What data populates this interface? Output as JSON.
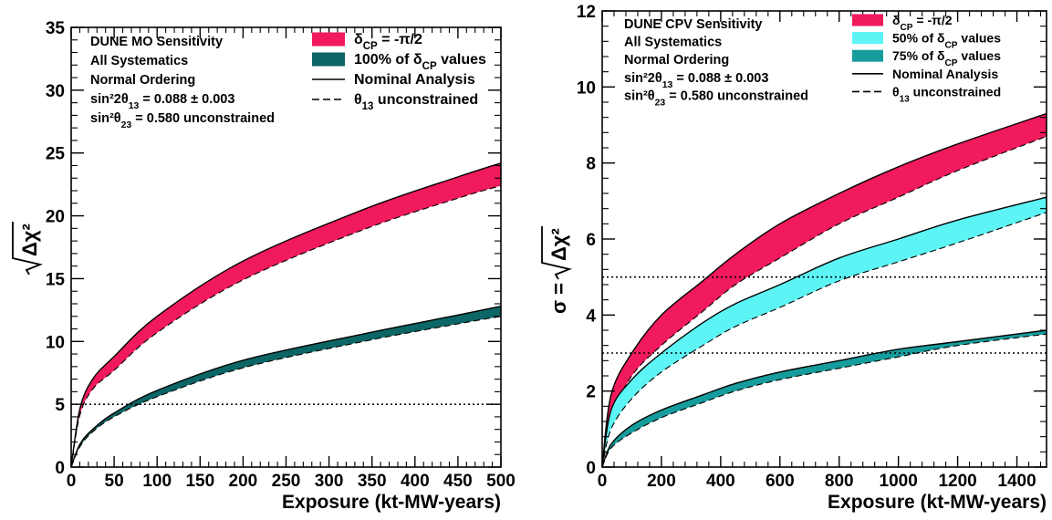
{
  "chart_data": [
    {
      "type": "area",
      "xlabel": "Exposure (kt-MW-years)",
      "ylabel_radicand": "Δχ²",
      "xlim": [
        0,
        500
      ],
      "ylim": [
        0,
        35
      ],
      "x_ticks": [
        0,
        50,
        100,
        150,
        200,
        250,
        300,
        350,
        400,
        450,
        500
      ],
      "y_ticks": [
        0,
        5,
        10,
        15,
        20,
        25,
        30,
        35
      ],
      "info_lines": [
        {
          "main": "DUNE MO Sensitivity",
          "sub": "",
          "tail": ""
        },
        {
          "main": "All Systematics",
          "sub": "",
          "tail": ""
        },
        {
          "main": "Normal Ordering",
          "sub": "",
          "tail": ""
        },
        {
          "main": "sin²2θ",
          "sub": "13",
          "tail": " = 0.088 ± 0.003"
        },
        {
          "main": "sin²θ",
          "sub": "23",
          "tail": " = 0.580 unconstrained"
        }
      ],
      "legend": [
        {
          "kind": "fill",
          "color": "#f01a5c",
          "pre": "δ",
          "sub": "CP",
          "post": " = -π/2"
        },
        {
          "kind": "fill",
          "color": "#0d6666",
          "pre": "100% of δ",
          "sub": "CP",
          "post": " values"
        },
        {
          "kind": "solid",
          "pre": "Nominal Analysis",
          "sub": "",
          "post": ""
        },
        {
          "kind": "dashed",
          "pre": "θ",
          "sub": "13",
          "post": " unconstrained"
        }
      ],
      "hlines": [
        5
      ],
      "series": [
        {
          "name": "δCP = -π/2",
          "color": "#f01a5c",
          "x": [
            0,
            10,
            25,
            50,
            100,
            200,
            340,
            450,
            500
          ],
          "upper": [
            0,
            4.6,
            7.0,
            8.8,
            12.0,
            16.4,
            20.5,
            23.1,
            24.2
          ],
          "lower": [
            0,
            4.1,
            6.2,
            7.7,
            10.7,
            14.9,
            18.9,
            21.4,
            22.4
          ]
        },
        {
          "name": "100% of δCP values",
          "color": "#0d6666",
          "x": [
            0,
            10,
            25,
            50,
            100,
            200,
            340,
            450,
            500
          ],
          "upper": [
            0,
            1.8,
            3.0,
            4.3,
            6.1,
            8.5,
            10.6,
            12.1,
            12.8
          ],
          "lower": [
            0,
            1.6,
            2.8,
            4.0,
            5.6,
            7.9,
            10.0,
            11.4,
            12.0
          ]
        }
      ]
    },
    {
      "type": "area",
      "ylabel_prefix": "σ = ",
      "ylabel_radicand": "Δχ²",
      "xlabel": "Exposure (kt-MW-years)",
      "xlim": [
        0,
        1500
      ],
      "ylim": [
        0,
        12
      ],
      "x_ticks": [
        0,
        200,
        400,
        600,
        800,
        1000,
        1200,
        1400
      ],
      "y_ticks": [
        0,
        2,
        4,
        6,
        8,
        10,
        12
      ],
      "info_lines": [
        {
          "main": "DUNE CPV Sensitivity",
          "sub": "",
          "tail": ""
        },
        {
          "main": "All Systematics",
          "sub": "",
          "tail": ""
        },
        {
          "main": "Normal Ordering",
          "sub": "",
          "tail": ""
        },
        {
          "main": "sin²2θ",
          "sub": "13",
          "tail": " = 0.088 ± 0.003"
        },
        {
          "main": "sin²θ",
          "sub": "23",
          "tail": " = 0.580 unconstrained"
        }
      ],
      "legend": [
        {
          "kind": "fill",
          "color": "#f01a5c",
          "pre": "δ",
          "sub": "CP",
          "post": " = -π/2"
        },
        {
          "kind": "fill",
          "color": "#5cf4f4",
          "pre": "50% of δ",
          "sub": "CP",
          "post": " values"
        },
        {
          "kind": "fill",
          "color": "#169c9c",
          "pre": "75% of δ",
          "sub": "CP",
          "post": " values"
        },
        {
          "kind": "solid",
          "pre": "Nominal Analysis",
          "sub": "",
          "post": ""
        },
        {
          "kind": "dashed",
          "pre": "θ",
          "sub": "13",
          "post": " unconstrained"
        }
      ],
      "hlines": [
        3,
        5
      ],
      "series": [
        {
          "name": "δCP = -π/2",
          "color": "#f01a5c",
          "x": [
            0,
            30,
            100,
            200,
            340,
            450,
            600,
            800,
            1000,
            1200,
            1500
          ],
          "upper": [
            0,
            1.9,
            3.0,
            4.0,
            4.9,
            5.6,
            6.4,
            7.2,
            7.9,
            8.5,
            9.3
          ],
          "lower": [
            0,
            1.3,
            2.4,
            3.2,
            4.1,
            4.8,
            5.5,
            6.4,
            7.1,
            7.8,
            8.7
          ]
        },
        {
          "name": "50% of δCP values",
          "color": "#5cf4f4",
          "x": [
            0,
            30,
            100,
            200,
            340,
            450,
            600,
            800,
            1000,
            1200,
            1500
          ],
          "upper": [
            0,
            1.5,
            2.3,
            3.0,
            3.8,
            4.3,
            4.8,
            5.5,
            6.0,
            6.5,
            7.1
          ],
          "lower": [
            0,
            1.0,
            1.8,
            2.5,
            3.2,
            3.7,
            4.2,
            4.9,
            5.4,
            5.9,
            6.7
          ]
        },
        {
          "name": "75% of δCP values",
          "color": "#169c9c",
          "x": [
            0,
            30,
            100,
            200,
            340,
            450,
            600,
            800,
            1000,
            1200,
            1500
          ],
          "upper": [
            0,
            0.6,
            1.1,
            1.5,
            1.9,
            2.2,
            2.5,
            2.8,
            3.1,
            3.3,
            3.6
          ],
          "lower": [
            0,
            0.5,
            0.9,
            1.3,
            1.7,
            2.0,
            2.3,
            2.6,
            2.9,
            3.2,
            3.5
          ]
        }
      ]
    }
  ]
}
